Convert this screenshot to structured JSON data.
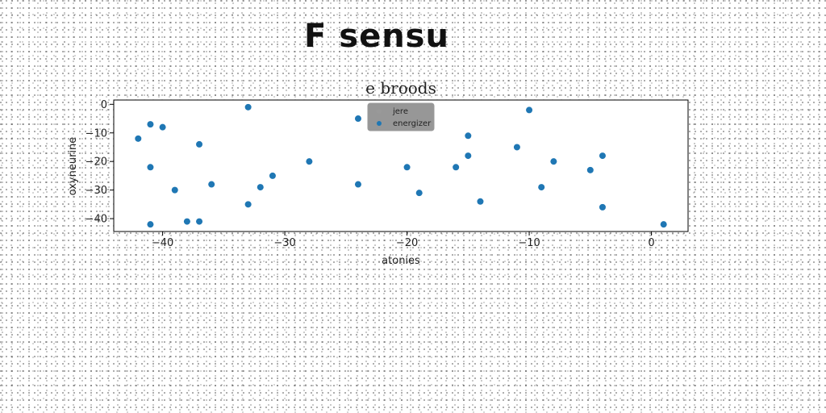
{
  "page": {
    "title": "F sensu"
  },
  "chart_data": {
    "type": "scatter",
    "title": "e broods",
    "xlabel": "atonies",
    "ylabel": "oxyneurine",
    "xlim": [
      -44,
      3
    ],
    "ylim": [
      -44.5,
      1.5
    ],
    "xticks": [
      -40,
      -30,
      -20,
      -10,
      0
    ],
    "yticks": [
      0,
      -10,
      -20,
      -30,
      -40
    ],
    "grid": false,
    "legend": {
      "position": "top-center",
      "entries": [
        {
          "name": "jere",
          "color": "#999999"
        },
        {
          "name": "energizer",
          "color": "#1f77b4"
        }
      ]
    },
    "series": [
      {
        "name": "jere",
        "color": "#999999",
        "x": [],
        "y": []
      },
      {
        "name": "energizer",
        "color": "#1f77b4",
        "x": [
          -42,
          -41,
          -41,
          -41,
          -40,
          -39,
          -38,
          -37,
          -37,
          -36,
          -33,
          -33,
          -32,
          -31,
          -28,
          -24,
          -24,
          -20,
          -19,
          -16,
          -15,
          -15,
          -14,
          -11,
          -10,
          -9,
          -8,
          -5,
          -4,
          -4,
          1
        ],
        "y": [
          -12,
          -7,
          -22,
          -42,
          -8,
          -30,
          -41,
          -14,
          -41,
          -28,
          -1,
          -35,
          -29,
          -25,
          -20,
          -5,
          -28,
          -22,
          -31,
          -22,
          -11,
          -18,
          -34,
          -15,
          -2,
          -29,
          -20,
          -23,
          -18,
          -36,
          -42
        ]
      }
    ]
  }
}
